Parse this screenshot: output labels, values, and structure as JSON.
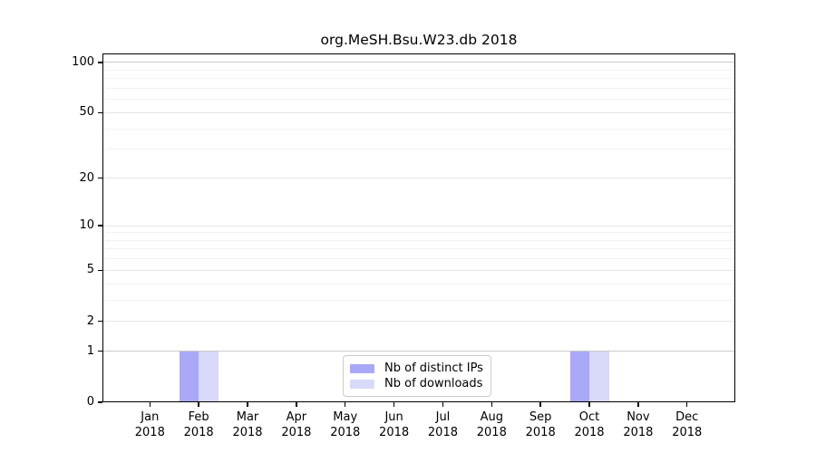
{
  "chart_data": {
    "type": "bar",
    "title": "org.MeSH.Bsu.W23.db 2018",
    "categories": [
      "Jan 2018",
      "Feb 2018",
      "Mar 2018",
      "Apr 2018",
      "May 2018",
      "Jun 2018",
      "Jul 2018",
      "Aug 2018",
      "Sep 2018",
      "Oct 2018",
      "Nov 2018",
      "Dec 2018"
    ],
    "month_labels": [
      "Jan",
      "Feb",
      "Mar",
      "Apr",
      "May",
      "Jun",
      "Jul",
      "Aug",
      "Sep",
      "Oct",
      "Nov",
      "Dec"
    ],
    "year_label": "2018",
    "series": [
      {
        "name": "Nb of distinct IPs",
        "color": "#a8a8f7",
        "values": [
          0,
          1,
          0,
          0,
          0,
          0,
          0,
          0,
          0,
          1,
          0,
          0
        ]
      },
      {
        "name": "Nb of downloads",
        "color": "#d9d9f9",
        "values": [
          0,
          1,
          0,
          0,
          0,
          0,
          0,
          0,
          0,
          1,
          0,
          0
        ]
      }
    ],
    "y_axis": {
      "scale": "log10(value+1)",
      "ticks": [
        0,
        1,
        2,
        5,
        10,
        20,
        50,
        100
      ],
      "minor_gridlines": [
        3,
        4,
        6,
        7,
        8,
        9,
        30,
        40,
        60,
        70,
        80,
        90
      ],
      "ylim": [
        0,
        113
      ],
      "grid": true
    },
    "xlabel": "",
    "ylabel": "",
    "legend_position": "lower center inside"
  },
  "colors": {
    "background": "#ffffff",
    "axis": "#000000",
    "grid_minor": "#f2f2f2",
    "grid_major": "#e6e6e6",
    "grid_emphasis": "#c9c9c9",
    "legend_border": "#cccccc",
    "text": "#000000"
  }
}
